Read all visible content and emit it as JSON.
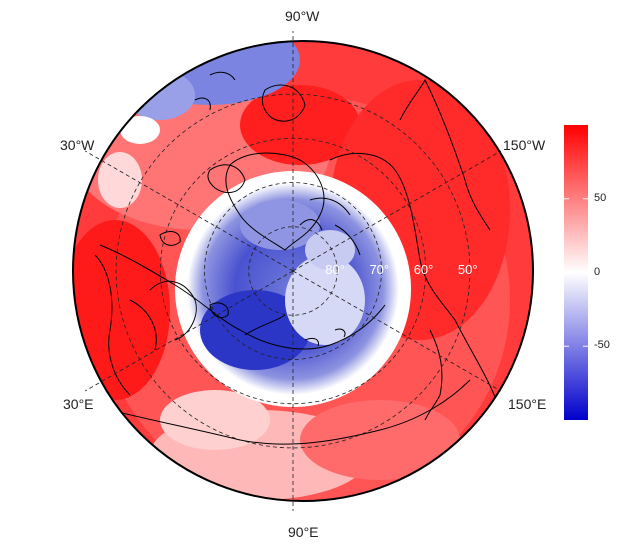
{
  "map": {
    "projection": "north-polar-stereographic",
    "lon_labels": [
      {
        "text": "90°W"
      },
      {
        "text": "30°W"
      },
      {
        "text": "150°W"
      },
      {
        "text": "30°E"
      },
      {
        "text": "150°E"
      },
      {
        "text": "90°E"
      }
    ],
    "lat_labels": [
      {
        "text": "80°",
        "lat": 80
      },
      {
        "text": "70°",
        "lat": 70
      },
      {
        "text": "60°",
        "lat": 60
      },
      {
        "text": "50°",
        "lat": 50
      }
    ],
    "graticule_lats": [
      80,
      70,
      60,
      50
    ],
    "graticule_meridians_deg": [
      0,
      60,
      120,
      180,
      240,
      300
    ]
  },
  "colorbar": {
    "min": -100,
    "max": 100,
    "ticks": [
      {
        "value": 50,
        "label": "50"
      },
      {
        "value": 0,
        "label": "0"
      },
      {
        "value": -50,
        "label": "-50"
      }
    ],
    "colors": {
      "low": "#0000cc",
      "mid": "#ffffff",
      "high": "#ff0000"
    }
  }
}
